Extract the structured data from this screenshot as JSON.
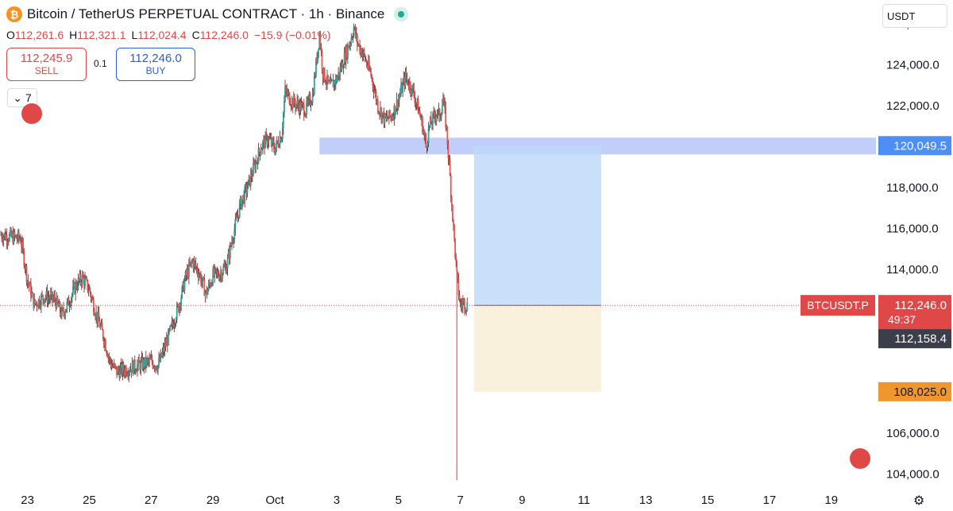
{
  "header": {
    "icon_glyph": "₿",
    "title": "Bitcoin / TetherUS PERPETUAL CONTRACT · 1h · Binance"
  },
  "ohlc": {
    "o_label": "O",
    "o": "112,261.6",
    "h_label": "H",
    "h": "112,321.1",
    "l_label": "L",
    "l": "112,024.4",
    "c_label": "C",
    "c": "112,246.0",
    "change": "−15.9 (−0.01%)"
  },
  "trade": {
    "sell_price": "112,245.9",
    "sell_label": "SELL",
    "spread": "0.1",
    "buy_price": "112,246.0",
    "buy_label": "BUY"
  },
  "indicators_toggle": {
    "glyph": "⌄",
    "count": "7"
  },
  "currency_select": {
    "value": "USDT"
  },
  "chart_data": {
    "type": "candlestick",
    "y_ticks": [
      "126,000.0",
      "124,000.0",
      "122,000.0",
      "118,000.0",
      "116,000.0",
      "114,000.0",
      "106,000.0",
      "104,000.0"
    ],
    "x_ticks": [
      "23",
      "25",
      "27",
      "29",
      "Oct",
      "3",
      "5",
      "7",
      "9",
      "11",
      "13",
      "15",
      "17",
      "19"
    ],
    "ylim": [
      103400,
      126700
    ],
    "price_labels": {
      "resistance": "120,049.5",
      "symbol": "BTCUSDT.P",
      "last": "112,246.0",
      "countdown": "49:37",
      "crosshair": "112,158.4",
      "stop": "108,025.0"
    },
    "resistance_level": 120049.5,
    "position": {
      "entry": 112246.0,
      "target": 120049.5,
      "stop": 108025.0
    },
    "colors": {
      "up": "#26a69a",
      "down": "#ef5350",
      "candle": "#6b1f1f",
      "target": "#bcd8fa",
      "stop": "#f9efd9",
      "band": "#b6c6f8"
    },
    "price_path": [
      [
        0,
        115700
      ],
      [
        3,
        115600
      ],
      [
        6,
        115500
      ],
      [
        8,
        113500
      ],
      [
        10,
        112300
      ],
      [
        13,
        112700
      ],
      [
        16,
        112500
      ],
      [
        18,
        111800
      ],
      [
        20,
        112400
      ],
      [
        22,
        113200
      ],
      [
        24,
        113600
      ],
      [
        26,
        113000
      ],
      [
        28,
        111800
      ],
      [
        30,
        110800
      ],
      [
        32,
        109500
      ],
      [
        34,
        109000
      ],
      [
        36,
        109100
      ],
      [
        38,
        109200
      ],
      [
        40,
        109300
      ],
      [
        42,
        109400
      ],
      [
        44,
        109500
      ],
      [
        46,
        109300
      ],
      [
        48,
        110200
      ],
      [
        50,
        111200
      ],
      [
        52,
        112200
      ],
      [
        54,
        113600
      ],
      [
        56,
        114400
      ],
      [
        58,
        113800
      ],
      [
        60,
        112800
      ],
      [
        62,
        113700
      ],
      [
        64,
        113800
      ],
      [
        66,
        114200
      ],
      [
        68,
        115800
      ],
      [
        70,
        117200
      ],
      [
        72,
        118000
      ],
      [
        74,
        119000
      ],
      [
        76,
        120000
      ],
      [
        78,
        120400
      ],
      [
        80,
        119900
      ],
      [
        82,
        120600
      ],
      [
        83,
        122700
      ],
      [
        85,
        122200
      ],
      [
        87,
        122000
      ],
      [
        89,
        121800
      ],
      [
        91,
        122500
      ],
      [
        93,
        125500
      ],
      [
        94,
        123600
      ],
      [
        96,
        122900
      ],
      [
        98,
        123300
      ],
      [
        100,
        124200
      ],
      [
        102,
        125200
      ],
      [
        103,
        125800
      ],
      [
        104,
        125100
      ],
      [
        106,
        124400
      ],
      [
        108,
        123500
      ],
      [
        110,
        122000
      ],
      [
        112,
        121300
      ],
      [
        114,
        121500
      ],
      [
        116,
        122300
      ],
      [
        118,
        123400
      ],
      [
        120,
        122800
      ],
      [
        122,
        121700
      ],
      [
        123,
        121000
      ],
      [
        124,
        120000
      ],
      [
        125,
        121000
      ],
      [
        126,
        121300
      ],
      [
        127,
        121700
      ],
      [
        128,
        121500
      ],
      [
        129,
        122300
      ],
      [
        130,
        120800
      ],
      [
        131,
        118500
      ],
      [
        132,
        116000
      ],
      [
        133,
        113600
      ],
      [
        134,
        112200
      ],
      [
        135,
        112400
      ],
      [
        136,
        112250
      ]
    ],
    "wicks": [
      {
        "t": 133,
        "low": 103700,
        "high": 113800
      }
    ]
  }
}
